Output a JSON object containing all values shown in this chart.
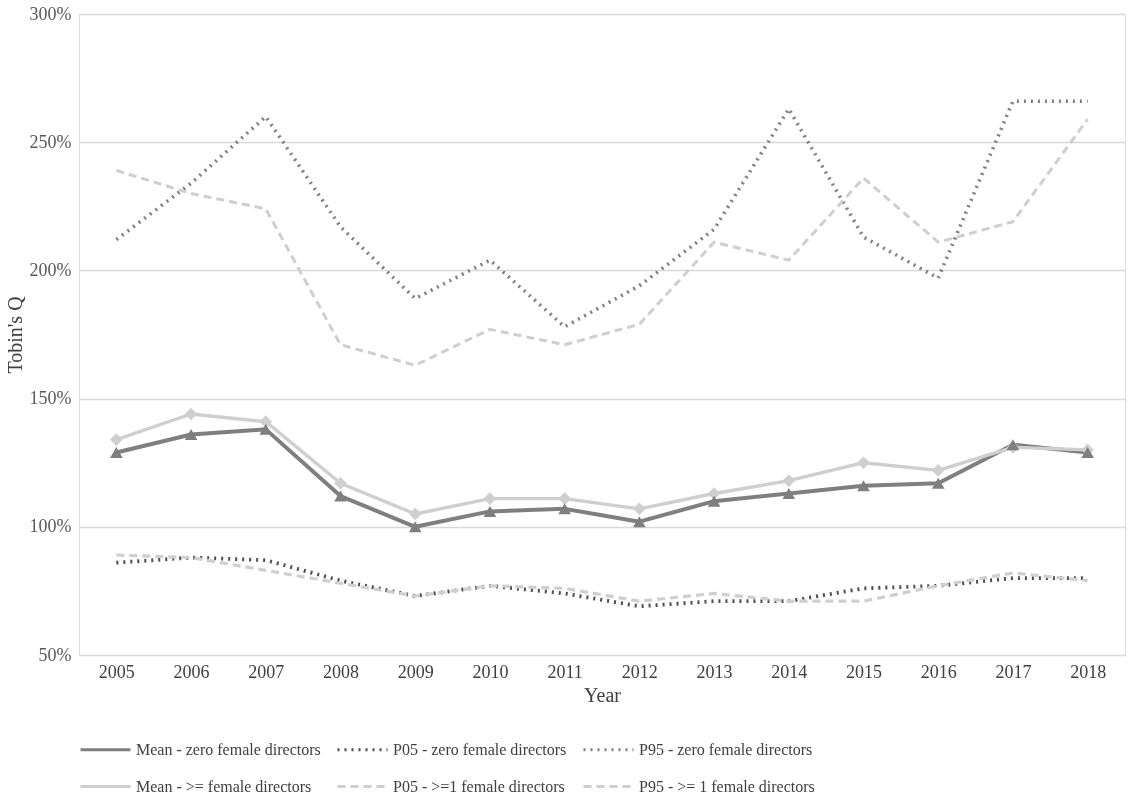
{
  "chart_data": {
    "type": "line",
    "xlabel": "Year",
    "ylabel": "Tobin's Q",
    "categories": [
      "2005",
      "2006",
      "2007",
      "2008",
      "2009",
      "2010",
      "2011",
      "2012",
      "2013",
      "2014",
      "2015",
      "2016",
      "2017",
      "2018"
    ],
    "ylim": [
      50,
      300
    ],
    "yticks": [
      {
        "value": 50,
        "label": "50%"
      },
      {
        "value": 100,
        "label": "100%"
      },
      {
        "value": 150,
        "label": "150%"
      },
      {
        "value": 200,
        "label": "200%"
      },
      {
        "value": 250,
        "label": "250%"
      },
      {
        "value": 300,
        "label": "300%"
      }
    ],
    "grid": "y",
    "legend": "bottom",
    "series": [
      {
        "name": "Mean - zero female directors",
        "color": "#7f7f7f",
        "marker": "triangle",
        "line_style": "solid",
        "values": [
          129,
          136,
          138,
          112,
          100,
          106,
          107,
          102,
          110,
          113,
          116,
          117,
          132,
          129
        ]
      },
      {
        "name": "P05 - zero female directors",
        "color": "#4d4d4d",
        "marker": "none",
        "line_style": "dotted",
        "values": [
          86,
          88,
          87,
          79,
          73,
          77,
          74,
          69,
          71,
          71,
          76,
          77,
          80,
          80
        ]
      },
      {
        "name": "P95 - zero female directors",
        "color": "#7f7f7f",
        "marker": "none",
        "line_style": "dotted",
        "values": [
          212,
          234,
          260,
          217,
          189,
          204,
          178,
          194,
          216,
          263,
          213,
          197,
          266,
          266
        ]
      },
      {
        "name": "Mean - >= female directors",
        "color": "#d0cece",
        "marker": "diamond",
        "line_style": "solid",
        "values": [
          134,
          144,
          141,
          117,
          105,
          111,
          111,
          107,
          113,
          118,
          125,
          122,
          131,
          130
        ]
      },
      {
        "name": "P05 - >=1 female directors",
        "color": "#d0cece",
        "marker": "none",
        "line_style": "dashed",
        "values": [
          89,
          88,
          83,
          78,
          73,
          77,
          76,
          71,
          74,
          71,
          71,
          77,
          82,
          79
        ]
      },
      {
        "name": "P95 - >= 1 female directors",
        "color": "#d0cece",
        "marker": "none",
        "line_style": "dashed",
        "values": [
          239,
          230,
          224,
          171,
          163,
          177,
          171,
          179,
          211,
          204,
          236,
          211,
          219,
          259
        ]
      }
    ]
  }
}
